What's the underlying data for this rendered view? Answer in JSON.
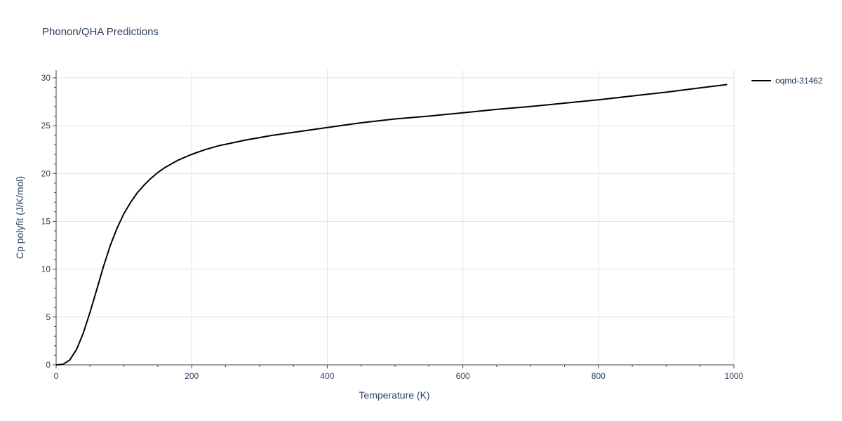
{
  "chart_data": {
    "type": "line",
    "title": "Phonon/QHA Predictions",
    "xlabel": "Temperature (K)",
    "ylabel": "Cp polyfit (J/K/mol)",
    "xlim": [
      0,
      1000
    ],
    "ylim": [
      0,
      30.8
    ],
    "x_ticks": [
      0,
      200,
      400,
      600,
      800,
      1000
    ],
    "y_ticks": [
      0,
      5,
      10,
      15,
      20,
      25,
      30
    ],
    "x_minor_step": 50,
    "y_minor_step": 1,
    "grid": true,
    "legend_position": "top-right",
    "series": [
      {
        "name": "oqmd-31462",
        "color": "#000000",
        "x": [
          0,
          10,
          20,
          30,
          40,
          50,
          60,
          70,
          80,
          90,
          100,
          110,
          120,
          130,
          140,
          150,
          160,
          170,
          180,
          190,
          200,
          220,
          240,
          260,
          280,
          300,
          320,
          340,
          360,
          380,
          400,
          450,
          500,
          550,
          600,
          650,
          700,
          750,
          800,
          850,
          900,
          950,
          990
        ],
        "y": [
          0,
          0.05,
          0.5,
          1.6,
          3.3,
          5.5,
          7.9,
          10.3,
          12.5,
          14.3,
          15.8,
          17.0,
          18.0,
          18.8,
          19.5,
          20.1,
          20.6,
          21.0,
          21.4,
          21.7,
          22.0,
          22.5,
          22.9,
          23.2,
          23.5,
          23.75,
          24.0,
          24.2,
          24.4,
          24.6,
          24.8,
          25.3,
          25.7,
          26.0,
          26.35,
          26.7,
          27.0,
          27.35,
          27.7,
          28.1,
          28.5,
          28.95,
          29.3
        ]
      }
    ]
  }
}
